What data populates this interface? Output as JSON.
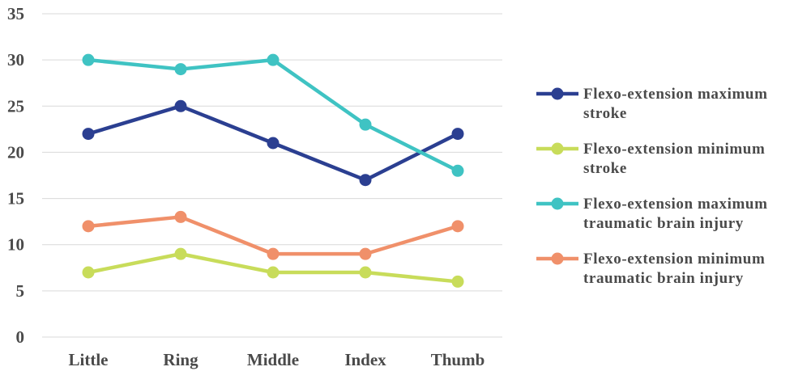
{
  "chart_data": {
    "type": "line",
    "categories": [
      "Little",
      "Ring",
      "Middle",
      "Index",
      "Thumb"
    ],
    "ylim": [
      0,
      35
    ],
    "yticks": [
      0,
      5,
      10,
      15,
      20,
      25,
      30,
      35
    ],
    "grid": true,
    "legend_position": "right",
    "series": [
      {
        "name": "Flexo-extension maximum stroke",
        "name_lines": [
          "Flexo-extension maximum",
          "stroke"
        ],
        "color": "#2b3f91",
        "values": [
          22,
          25,
          21,
          17,
          22
        ]
      },
      {
        "name": "Flexo-extension minimum stroke",
        "name_lines": [
          "Flexo-extension minimum",
          "stroke"
        ],
        "color": "#c8dc5a",
        "values": [
          7,
          9,
          7,
          7,
          6
        ]
      },
      {
        "name": "Flexo-extension maximum traumatic brain injury",
        "name_lines": [
          "Flexo-extension maximum",
          "traumatic brain injury"
        ],
        "color": "#3fc3c3",
        "values": [
          30,
          29,
          30,
          23,
          18
        ]
      },
      {
        "name": "Flexo-extension minimum traumatic brain injury",
        "name_lines": [
          "Flexo-extension minimum",
          "traumatic brain injury"
        ],
        "color": "#f0906a",
        "values": [
          12,
          13,
          9,
          9,
          12
        ]
      }
    ]
  }
}
